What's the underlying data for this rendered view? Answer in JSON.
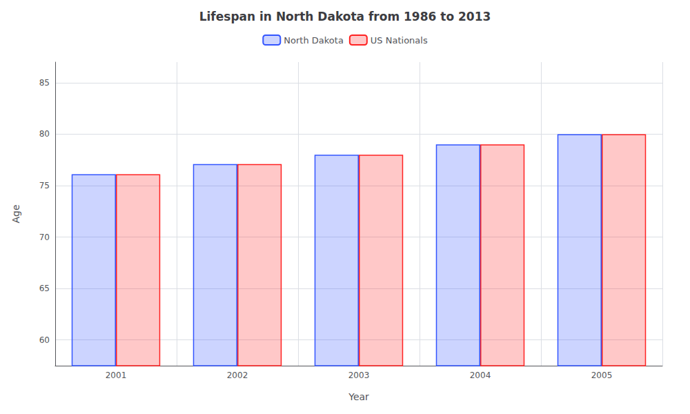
{
  "chart_data": {
    "type": "bar",
    "title": "Lifespan in North Dakota from 1986 to 2013",
    "xlabel": "Year",
    "ylabel": "Age",
    "categories": [
      "2001",
      "2002",
      "2003",
      "2004",
      "2005"
    ],
    "series": [
      {
        "name": "North Dakota",
        "color": "#3355ff",
        "values": [
          76.1,
          77.1,
          78.0,
          79.0,
          80.0
        ]
      },
      {
        "name": "US Nationals",
        "color": "#ff2222",
        "values": [
          76.1,
          77.1,
          78.0,
          79.0,
          80.0
        ]
      }
    ],
    "ylim": [
      57.5,
      87
    ],
    "yticks": [
      60,
      65,
      70,
      75,
      80,
      85
    ],
    "grid": true,
    "legend": "top"
  }
}
